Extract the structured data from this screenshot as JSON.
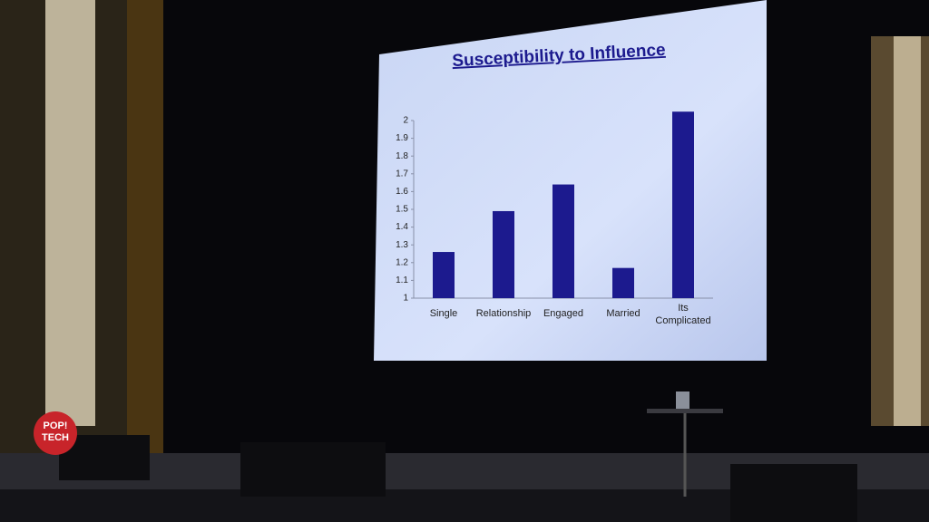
{
  "chart_data": {
    "type": "bar",
    "title": "Susceptibility to Influence",
    "categories": [
      "Single",
      "Relationship",
      "Engaged",
      "Married",
      "Its Complicated"
    ],
    "values": [
      1.26,
      1.49,
      1.64,
      1.17,
      2.05
    ],
    "color": "#1c1a8e",
    "ylim": [
      1,
      2
    ],
    "yticks": [
      1,
      1.1,
      1.2,
      1.3,
      1.4,
      1.5,
      1.6,
      1.7,
      1.8,
      1.9,
      2
    ],
    "grid": false
  },
  "logo_text": [
    "POP!",
    "TECH"
  ]
}
